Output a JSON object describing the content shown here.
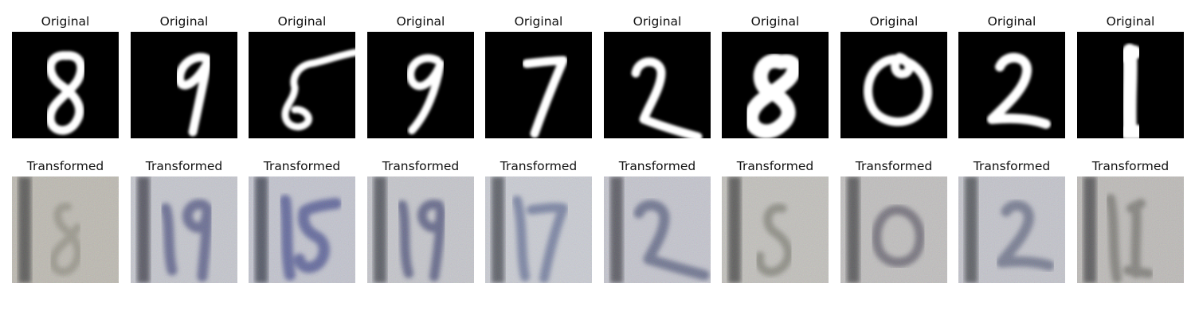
{
  "figure": {
    "original_title": "Original",
    "transformed_title": "Transformed",
    "samples": [
      {
        "digit": "8"
      },
      {
        "digit": "9"
      },
      {
        "digit": "5"
      },
      {
        "digit": "9"
      },
      {
        "digit": "7"
      },
      {
        "digit": "2"
      },
      {
        "digit": "8"
      },
      {
        "digit": "0"
      },
      {
        "digit": "2"
      },
      {
        "digit": "1"
      }
    ]
  }
}
